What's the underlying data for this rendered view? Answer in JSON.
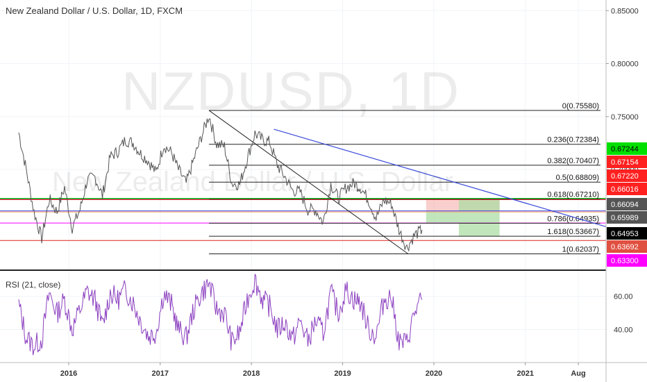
{
  "chart_data": {
    "type": "candlestick-line",
    "title": "New Zealand Dollar / U.S. Dollar, 1D, FXCM",
    "watermark_symbol": "NZDUSD, 1D",
    "watermark_name": "New Zealand Dollar / U.S. Dollar",
    "x_ticks": [
      "2016",
      "2017",
      "2018",
      "2019",
      "2020",
      "2021",
      "Aug"
    ],
    "y_ticks": [
      "0.85000",
      "0.80000",
      "0.75000",
      "0.70000"
    ],
    "ylim": [
      0.605,
      0.86
    ],
    "price_series": [
      [
        "2015-06",
        0.735
      ],
      [
        "2015-07",
        0.7
      ],
      [
        "2015-08",
        0.66
      ],
      [
        "2015-09",
        0.635
      ],
      [
        "2015-10",
        0.672
      ],
      [
        "2015-11",
        0.66
      ],
      [
        "2015-12",
        0.683
      ],
      [
        "2016-01",
        0.645
      ],
      [
        "2016-02",
        0.662
      ],
      [
        "2016-03",
        0.69
      ],
      [
        "2016-04",
        0.693
      ],
      [
        "2016-05",
        0.675
      ],
      [
        "2016-06",
        0.712
      ],
      [
        "2016-07",
        0.717
      ],
      [
        "2016-08",
        0.728
      ],
      [
        "2016-09",
        0.725
      ],
      [
        "2016-10",
        0.715
      ],
      [
        "2016-11",
        0.708
      ],
      [
        "2016-12",
        0.697
      ],
      [
        "2017-01",
        0.723
      ],
      [
        "2017-02",
        0.716
      ],
      [
        "2017-03",
        0.7
      ],
      [
        "2017-04",
        0.687
      ],
      [
        "2017-05",
        0.709
      ],
      [
        "2017-06",
        0.731
      ],
      [
        "2017-07",
        0.751
      ],
      [
        "2017-08",
        0.724
      ],
      [
        "2017-09",
        0.722
      ],
      [
        "2017-10",
        0.687
      ],
      [
        "2017-11",
        0.686
      ],
      [
        "2017-12",
        0.71
      ],
      [
        "2018-01",
        0.734
      ],
      [
        "2018-02",
        0.728
      ],
      [
        "2018-03",
        0.726
      ],
      [
        "2018-04",
        0.704
      ],
      [
        "2018-05",
        0.693
      ],
      [
        "2018-06",
        0.68
      ],
      [
        "2018-07",
        0.679
      ],
      [
        "2018-08",
        0.662
      ],
      [
        "2018-09",
        0.662
      ],
      [
        "2018-10",
        0.65
      ],
      [
        "2018-11",
        0.686
      ],
      [
        "2018-12",
        0.673
      ],
      [
        "2019-01",
        0.683
      ],
      [
        "2019-02",
        0.687
      ],
      [
        "2019-03",
        0.683
      ],
      [
        "2019-04",
        0.671
      ],
      [
        "2019-05",
        0.654
      ],
      [
        "2019-06",
        0.671
      ],
      [
        "2019-07",
        0.668
      ],
      [
        "2019-08",
        0.643
      ],
      [
        "2019-09",
        0.626
      ],
      [
        "2019-10",
        0.638
      ],
      [
        "2019-11",
        0.643
      ]
    ],
    "rsi": {
      "title": "RSI (21, close)",
      "y_ticks": [
        "60.00",
        "40.00"
      ],
      "ylim": [
        20,
        75
      ],
      "values": [
        [
          "2015-06",
          55
        ],
        [
          "2015-07",
          35
        ],
        [
          "2015-08",
          30
        ],
        [
          "2015-09",
          34
        ],
        [
          "2015-10",
          62
        ],
        [
          "2015-11",
          50
        ],
        [
          "2015-12",
          58
        ],
        [
          "2016-01",
          40
        ],
        [
          "2016-02",
          52
        ],
        [
          "2016-03",
          63
        ],
        [
          "2016-04",
          58
        ],
        [
          "2016-05",
          42
        ],
        [
          "2016-06",
          62
        ],
        [
          "2016-07",
          58
        ],
        [
          "2016-08",
          64
        ],
        [
          "2016-09",
          56
        ],
        [
          "2016-10",
          45
        ],
        [
          "2016-11",
          36
        ],
        [
          "2016-12",
          38
        ],
        [
          "2017-01",
          62
        ],
        [
          "2017-02",
          55
        ],
        [
          "2017-03",
          40
        ],
        [
          "2017-04",
          35
        ],
        [
          "2017-05",
          52
        ],
        [
          "2017-06",
          62
        ],
        [
          "2017-07",
          68
        ],
        [
          "2017-08",
          52
        ],
        [
          "2017-09",
          50
        ],
        [
          "2017-10",
          32
        ],
        [
          "2017-11",
          38
        ],
        [
          "2017-12",
          58
        ],
        [
          "2018-01",
          70
        ],
        [
          "2018-02",
          58
        ],
        [
          "2018-03",
          54
        ],
        [
          "2018-04",
          40
        ],
        [
          "2018-05",
          44
        ],
        [
          "2018-06",
          34
        ],
        [
          "2018-07",
          45
        ],
        [
          "2018-08",
          33
        ],
        [
          "2018-09",
          45
        ],
        [
          "2018-10",
          38
        ],
        [
          "2018-11",
          62
        ],
        [
          "2018-12",
          50
        ],
        [
          "2019-01",
          64
        ],
        [
          "2019-02",
          58
        ],
        [
          "2019-03",
          56
        ],
        [
          "2019-04",
          40
        ],
        [
          "2019-05",
          36
        ],
        [
          "2019-06",
          58
        ],
        [
          "2019-07",
          60
        ],
        [
          "2019-08",
          32
        ],
        [
          "2019-09",
          32
        ],
        [
          "2019-10",
          50
        ],
        [
          "2019-11",
          58
        ]
      ]
    },
    "fib_levels": [
      {
        "label": "0(0.75580)",
        "value": 0.7558
      },
      {
        "label": "0.236(0.72384)",
        "value": 0.72384
      },
      {
        "label": "0.382(0.70407)",
        "value": 0.70407
      },
      {
        "label": "0.5(0.68809)",
        "value": 0.68809
      },
      {
        "label": "0.618(0.67210)",
        "value": 0.6721
      },
      {
        "label": "0.786(0.64935)",
        "value": 0.64935
      },
      {
        "label": "1(0.62037)",
        "value": 0.62037
      },
      {
        "label": "1.618(0.53667)",
        "value": 0.53667
      }
    ],
    "horizontal_lines": [
      {
        "value": 0.67244,
        "color": "#00e000"
      },
      {
        "value": 0.67154,
        "color": "#ff3b3b"
      },
      {
        "value": 0.6722,
        "color": "#555555"
      },
      {
        "value": 0.66016,
        "color": "#ff80ff"
      },
      {
        "value": 0.66094,
        "color": "#3a4bd8"
      },
      {
        "value": 0.65989,
        "color": "#f0b060"
      },
      {
        "value": 0.64953,
        "color": "#ff00ff"
      },
      {
        "value": 0.633,
        "color": "#e02020"
      }
    ],
    "price_labels": [
      {
        "text": "0.67244",
        "bg": "#00e000",
        "fg": "#000000"
      },
      {
        "text": "0.67154",
        "bg": "#ff2020",
        "fg": "#ffffff"
      },
      {
        "text": "0.67220",
        "bg": "#ff2020",
        "fg": "#ffffff"
      },
      {
        "text": "0.66016",
        "bg": "#ff2020",
        "fg": "#ffffff"
      },
      {
        "text": "0.66094",
        "bg": "#555555",
        "fg": "#ffffff"
      },
      {
        "text": "0.65989",
        "bg": "#555555",
        "fg": "#ffffff"
      },
      {
        "text": "0.64953",
        "bg": "#000000",
        "fg": "#ffffff"
      },
      {
        "text": "0.63692",
        "bg": "#e05040",
        "fg": "#ffffff"
      },
      {
        "text": "0.63300",
        "bg": "#ff00ff",
        "fg": "#ffffff"
      }
    ],
    "colors": {
      "price_line": "#555555",
      "rsi_line": "#8b3fbf",
      "blue_trend": "#3a4bd8",
      "black_trend": "#222222",
      "stop_zone": "#f4a8a4",
      "target_zone": "#a8dca0"
    }
  }
}
